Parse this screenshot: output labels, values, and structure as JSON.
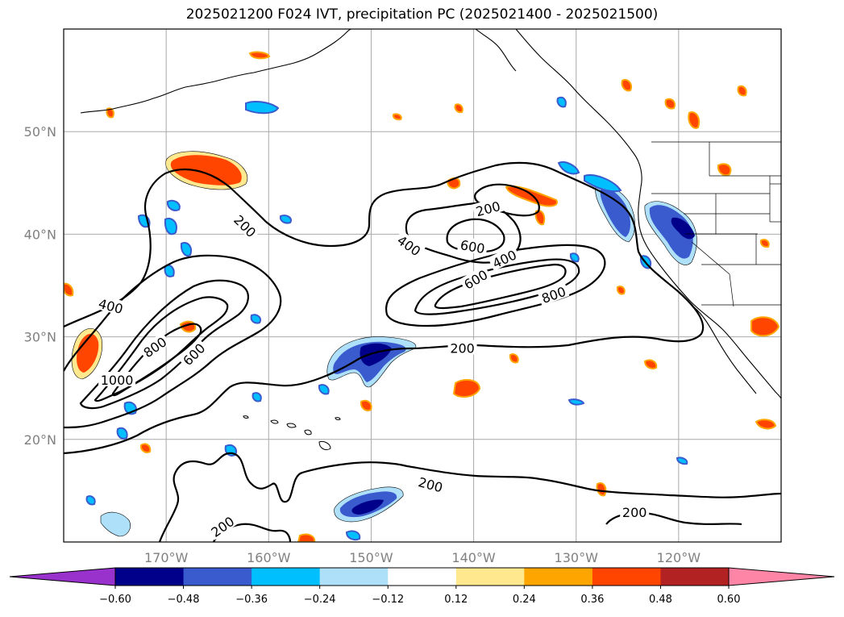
{
  "title": "2025021200 F024 IVT, precipitation PC (2025021400 - 2025021500)",
  "map": {
    "lon_range": [
      -180,
      -110
    ],
    "lat_range": [
      10,
      60
    ],
    "lat_ticks": [
      {
        "value": 20,
        "label": "20°N"
      },
      {
        "value": 30,
        "label": "30°N"
      },
      {
        "value": 40,
        "label": "40°N"
      },
      {
        "value": 50,
        "label": "50°N"
      }
    ],
    "lon_ticks": [
      {
        "value": -170,
        "label": "170°W"
      },
      {
        "value": -160,
        "label": "160°W"
      },
      {
        "value": -150,
        "label": "150°W"
      },
      {
        "value": -140,
        "label": "140°W"
      },
      {
        "value": -130,
        "label": "130°W"
      },
      {
        "value": -120,
        "label": "120°W"
      }
    ],
    "grid": true,
    "contour_labels": [
      {
        "text": "200",
        "lon": -162.3,
        "lat": 40.8,
        "rot": 45
      },
      {
        "text": "200",
        "lon": -138.6,
        "lat": 42.5,
        "rot": -15
      },
      {
        "text": "200",
        "lon": -141.1,
        "lat": 28.9,
        "rot": 0
      },
      {
        "text": "200",
        "lon": -144.2,
        "lat": 15.6,
        "rot": 15
      },
      {
        "text": "200",
        "lon": -164.5,
        "lat": 11.5,
        "rot": -35
      },
      {
        "text": "200",
        "lon": -124.3,
        "lat": 12.9,
        "rot": 0
      },
      {
        "text": "400",
        "lon": -146.3,
        "lat": 38.9,
        "rot": 35
      },
      {
        "text": "400",
        "lon": -137.0,
        "lat": 37.6,
        "rot": -25
      },
      {
        "text": "400",
        "lon": -175.4,
        "lat": 33.0,
        "rot": 15
      },
      {
        "text": "600",
        "lon": -140.1,
        "lat": 38.8,
        "rot": 10
      },
      {
        "text": "600",
        "lon": -139.8,
        "lat": 35.6,
        "rot": -30
      },
      {
        "text": "600",
        "lon": -167.3,
        "lat": 28.3,
        "rot": -45
      },
      {
        "text": "800",
        "lon": -132.2,
        "lat": 34.1,
        "rot": -20
      },
      {
        "text": "800",
        "lon": -171.1,
        "lat": 29.0,
        "rot": -35
      },
      {
        "text": "1000",
        "lon": -174.8,
        "lat": 25.8,
        "rot": 0
      }
    ]
  },
  "colorbar": {
    "colors": [
      "#9932cc",
      "#00008b",
      "#3a5bcd",
      "#00bfff",
      "#aee0fa",
      "#ffffff",
      "#ffe88e",
      "#ffa500",
      "#ff4500",
      "#b22222",
      "#ff85a7"
    ],
    "tick_labels": [
      "−0.60",
      "−0.48",
      "−0.36",
      "−0.24",
      "−0.12",
      "0.12",
      "0.24",
      "0.36",
      "0.48",
      "0.60"
    ]
  }
}
